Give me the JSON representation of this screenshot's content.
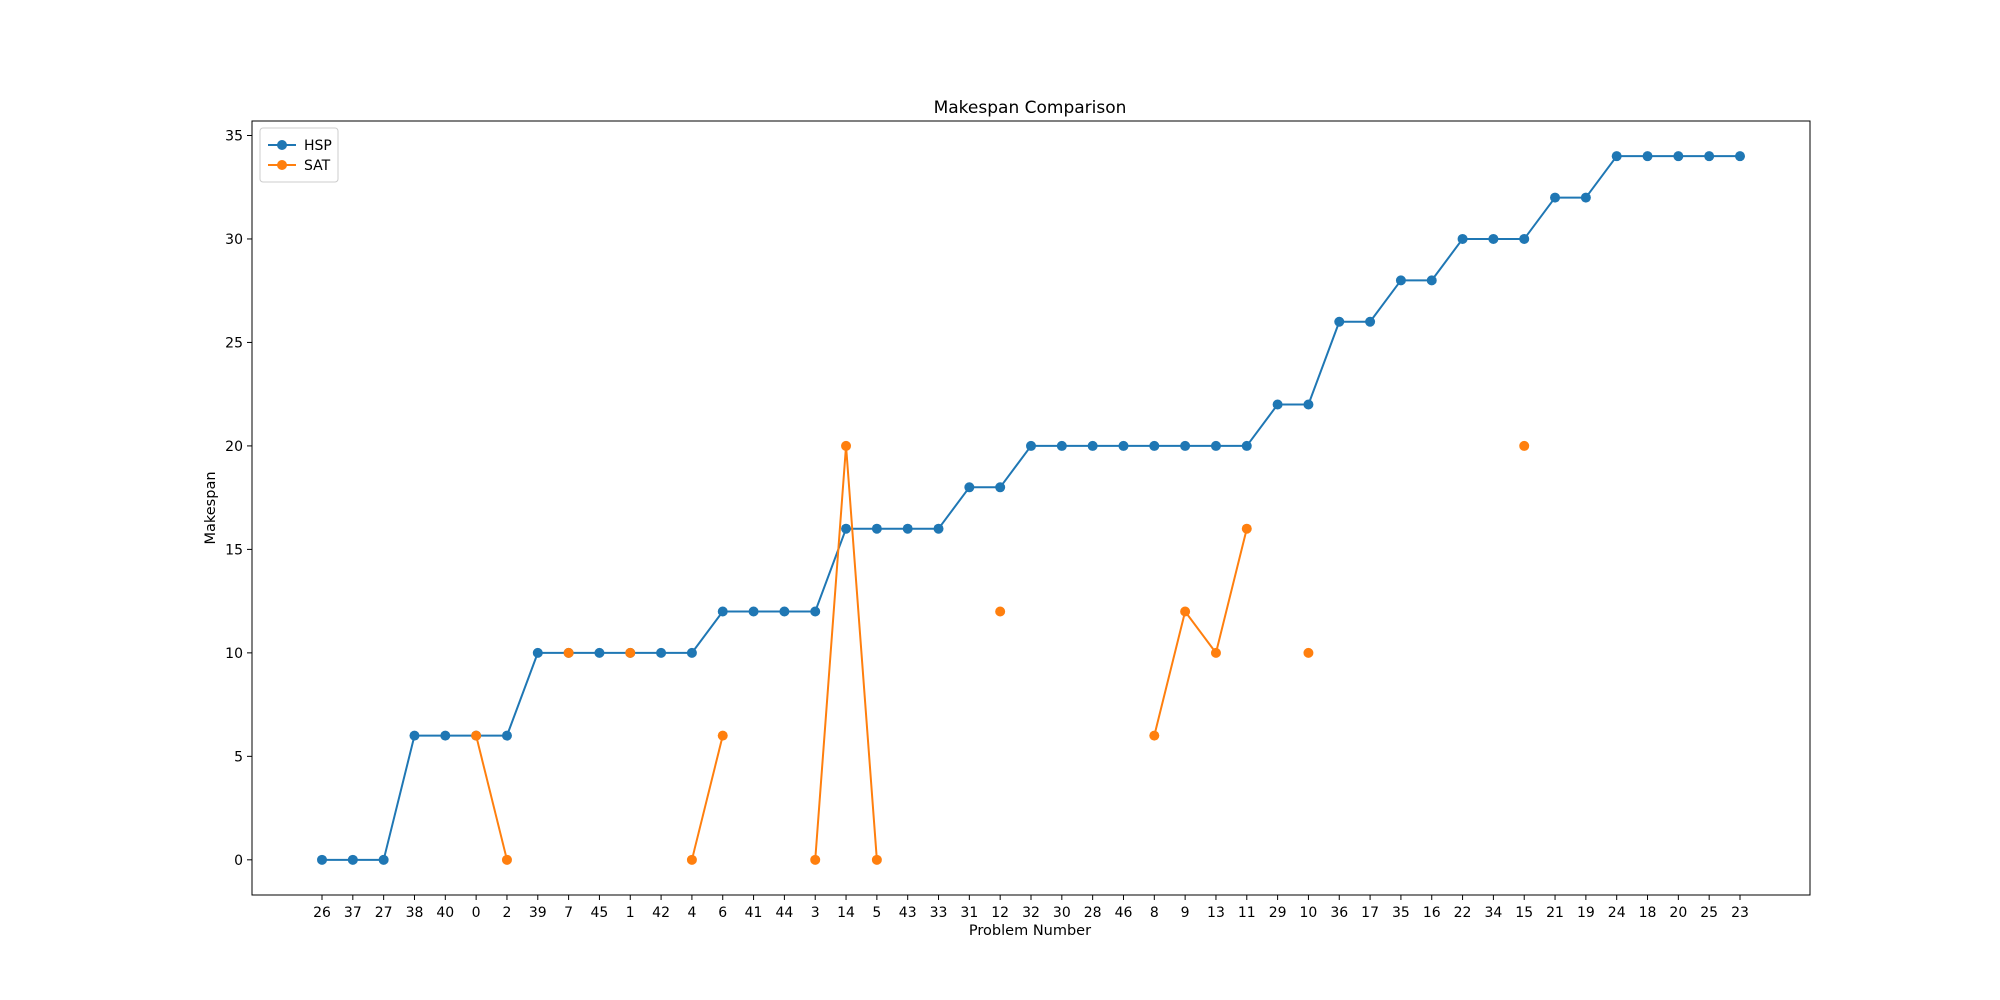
{
  "chart_data": {
    "type": "line",
    "title": "Makespan Comparison",
    "xlabel": "Problem Number",
    "ylabel": "Makespan",
    "categories": [
      "26",
      "37",
      "27",
      "38",
      "40",
      "0",
      "2",
      "39",
      "7",
      "45",
      "1",
      "42",
      "4",
      "6",
      "41",
      "44",
      "3",
      "14",
      "5",
      "43",
      "33",
      "31",
      "12",
      "32",
      "30",
      "28",
      "46",
      "8",
      "9",
      "13",
      "11",
      "29",
      "10",
      "36",
      "17",
      "35",
      "16",
      "22",
      "34",
      "15",
      "21",
      "19",
      "24",
      "18",
      "20",
      "25",
      "23"
    ],
    "ylim": [
      -1.7,
      35.7
    ],
    "yticks": [
      0,
      5,
      10,
      15,
      20,
      25,
      30,
      35
    ],
    "grid": false,
    "legend_position": "top-left",
    "series": [
      {
        "name": "HSP",
        "color": "#1f77b4",
        "values": [
          0,
          0,
          0,
          6,
          6,
          6,
          6,
          10,
          10,
          10,
          10,
          10,
          10,
          12,
          12,
          12,
          12,
          16,
          16,
          16,
          16,
          18,
          18,
          20,
          20,
          20,
          20,
          20,
          20,
          20,
          20,
          22,
          22,
          26,
          26,
          28,
          28,
          30,
          30,
          30,
          32,
          32,
          34,
          34,
          34,
          34,
          34
        ]
      },
      {
        "name": "SAT",
        "color": "#ff7f0e",
        "values": [
          null,
          null,
          null,
          null,
          null,
          6,
          0,
          null,
          10,
          null,
          10,
          null,
          0,
          6,
          null,
          null,
          0,
          20,
          0,
          null,
          null,
          null,
          12,
          null,
          null,
          null,
          null,
          6,
          12,
          10,
          16,
          null,
          10,
          null,
          null,
          null,
          null,
          null,
          null,
          20,
          null,
          null,
          null,
          null,
          null,
          null,
          null
        ]
      }
    ]
  }
}
